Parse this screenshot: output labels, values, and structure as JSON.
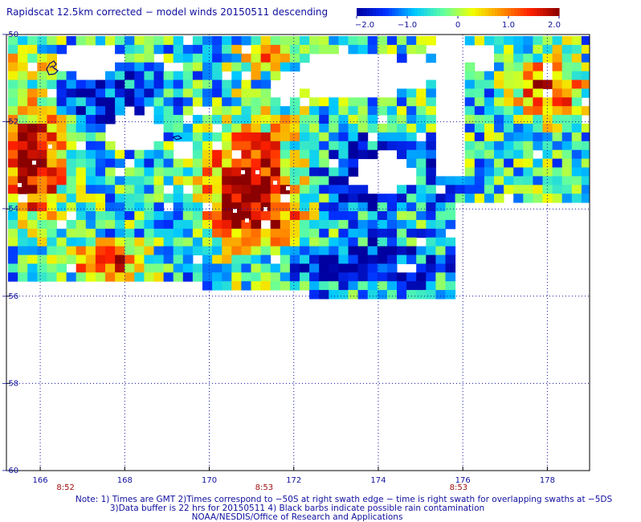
{
  "title": "Rapidscat 12.5km corrected − model winds 20150511 descending",
  "colorbar": {
    "labels": [
      "−2.0",
      "−1.0",
      "0",
      "1.0",
      "2.0"
    ],
    "values": [
      -2.0,
      -1.0,
      0,
      1.0,
      2.0
    ],
    "colors": [
      "#0000a0",
      "#0030ff",
      "#00c8ff",
      "#60ffa0",
      "#f0ff00",
      "#ff9000",
      "#ff2000",
      "#8b0000"
    ]
  },
  "map": {
    "lon_ticks": [
      "166",
      "168",
      "170",
      "172",
      "174",
      "176",
      "178"
    ],
    "lat_ticks": [
      "−50",
      "−52",
      "−54",
      "−56",
      "−58",
      "−60"
    ],
    "lon_range": [
      165.2,
      179.0
    ],
    "lat_range": [
      -60,
      -50
    ],
    "time_labels": [
      {
        "text": "8:52",
        "lon": 166.6
      },
      {
        "text": "8:53",
        "lon": 171.3
      },
      {
        "text": "8:53",
        "lon": 175.9
      }
    ],
    "time_color": "#a01010"
  },
  "notes": [
    "Note: 1) Times are GMT 2)Times correspond to −50S at right swath edge − time is right swath for overlapping swaths at −5DS",
    "3)Data buffer is 22 hrs for 20150511 4) Black barbs indicate possible rain contamination",
    "NOAA/NESDIS/Office of Research and Applications"
  ]
}
